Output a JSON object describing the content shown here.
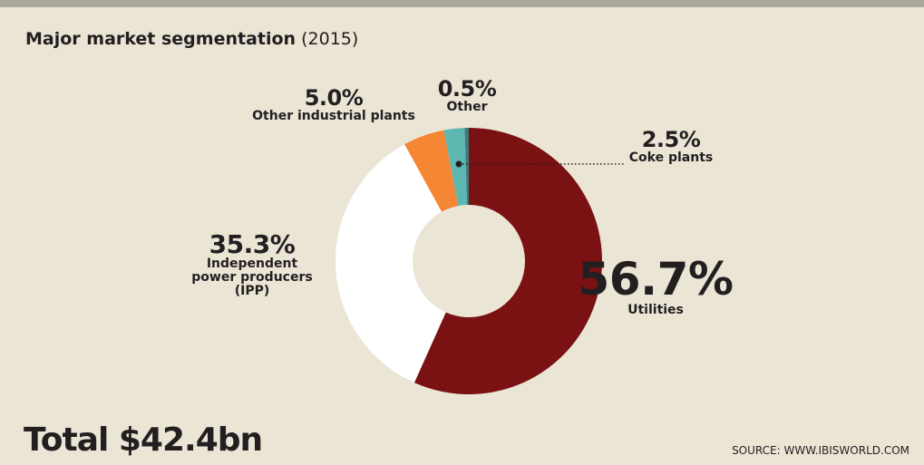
{
  "chart_data": {
    "type": "donut",
    "title": "Major market segmentation",
    "subtitle": "(2015)",
    "total_label": "Total $42.4bn",
    "source": "SOURCE: WWW.IBISWORLD.COM",
    "categories": [
      "Utilities",
      "Independent power producers (IPP)",
      "Other industrial plants",
      "Coke plants",
      "Other"
    ],
    "values": [
      56.7,
      35.3,
      5.0,
      2.5,
      0.5
    ],
    "value_labels": [
      "56.7%",
      "35.3%",
      "5.0%",
      "2.5%",
      "0.5%"
    ],
    "colors": [
      "#7a1112",
      "#ffffff",
      "#f58634",
      "#5db8b1",
      "#3e7c7a"
    ]
  }
}
